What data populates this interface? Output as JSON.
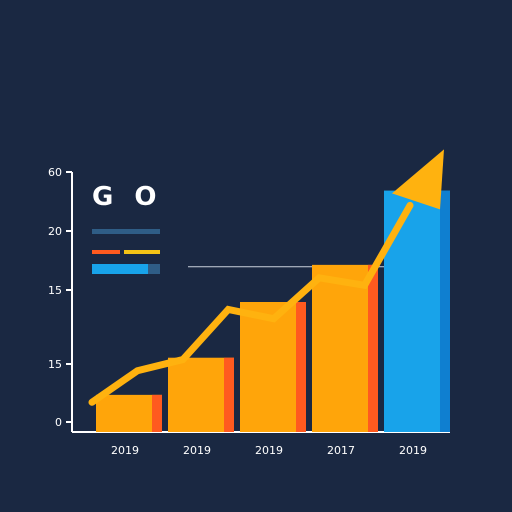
{
  "chart_data": {
    "type": "bar",
    "title": "G O",
    "categories": [
      "2019",
      "2019",
      "2019",
      "2017",
      "2019"
    ],
    "values": [
      2,
      4,
      7,
      9,
      13
    ],
    "y_tick_labels": [
      "0",
      "15",
      "15",
      "20",
      "60"
    ],
    "ylim": [
      0,
      14
    ],
    "grid": false,
    "line_series": {
      "values": [
        1.6,
        3.3,
        3.9,
        6.6,
        6.1,
        8.3,
        7.9,
        12.2
      ]
    },
    "reference_line": {
      "value": 8.9
    },
    "legend_placement": "top-left",
    "legend_colors": [
      "#2f5d86",
      "#ff5a1f",
      "#f3c316",
      "#18a3ea"
    ],
    "colors": {
      "background": "#1a2842",
      "bar": "#ffa50a",
      "bar_shade": "#ff5a1f",
      "bar_highlight": "#18a3ea",
      "bar_highlight_shade": "#0f7fd0",
      "line": "#ffb20f",
      "axis": "#ffffff"
    }
  }
}
